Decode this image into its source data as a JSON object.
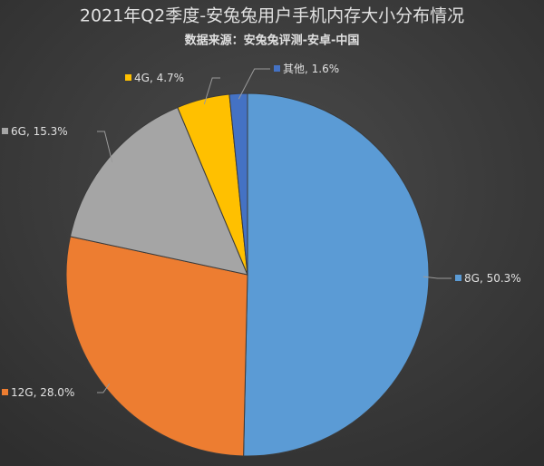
{
  "chart_data": {
    "type": "pie",
    "title": "2021年Q2季度-安兔兔用户手机内存大小分布情况",
    "subtitle": "数据来源：安兔兔评测-安卓-中国",
    "categories": [
      "8G",
      "12G",
      "6G",
      "4G",
      "其他"
    ],
    "values": [
      50.3,
      28.0,
      15.3,
      4.7,
      1.6
    ],
    "value_labels": [
      "50.3%",
      "28.0%",
      "15.3%",
      "4.7%",
      "1.6%"
    ],
    "label_separator": ", ",
    "colors": [
      "#5b9bd5",
      "#ed7d31",
      "#a5a5a5",
      "#ffc000",
      "#4472c4"
    ]
  }
}
